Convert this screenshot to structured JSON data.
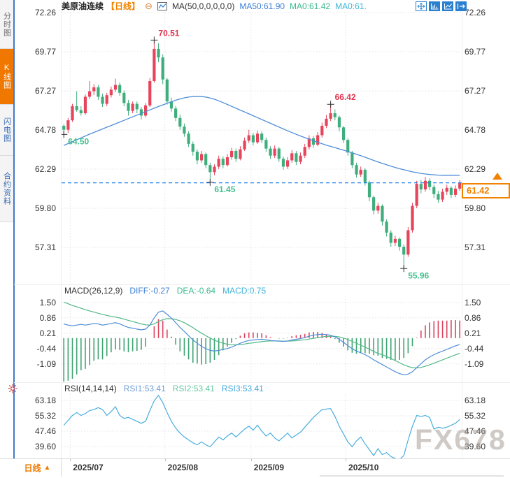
{
  "sidebar": {
    "tabs": [
      {
        "label": "分时图",
        "active": false
      },
      {
        "label": "K线图",
        "active": true
      },
      {
        "label": "闪电图",
        "active": false
      },
      {
        "label": "合约资料",
        "active": false
      }
    ]
  },
  "header": {
    "symbol": "美原油连续",
    "period": "【日线】",
    "collapse_glyph": "⊖",
    "ma_settings": "MA(50,0,0,0,0,0)",
    "ma50_label": "MA50:61.90",
    "ma0_label_a": "MA0:61.42",
    "ma0_label_b": "MA0:61."
  },
  "toolbar": {
    "icons": [
      "crosshair-move-icon",
      "zoom-range-icon",
      "axis-scale-icon",
      "pane-expand-icon"
    ]
  },
  "price_tag": {
    "value": "61.42"
  },
  "macd_header": {
    "params": "MACD(26,12,9)",
    "diff": "DIFF:-0.27",
    "dea": "DEA:-0.64",
    "macd": "MACD:0.75"
  },
  "rsi_header": {
    "params": "RSI(14,14,14)",
    "rsi1": "RSI1:53.41",
    "rsi2": "RSI2:53.41",
    "rsi3": "RSI3:53.41"
  },
  "bottom": {
    "period_label": "日线",
    "period_arrow": "▲",
    "dates": [
      "2025/07",
      "2025/08",
      "2025/09",
      "2025/10"
    ]
  },
  "watermark": "FX678",
  "colors": {
    "up": "#e6455c",
    "down": "#3eae7c",
    "annotation_high": "#e0334e",
    "annotation_low": "#45c08f",
    "ma50": "#4f8ed8",
    "current_line": "#1e80e8",
    "accent_orange": "#f08200",
    "diff_line": "#4f8ed8",
    "dea_line": "#52b888",
    "hist_pos": "#d9455f",
    "hist_neg": "#3fa372",
    "rsi_line": "#49aede",
    "grid": "#e2e4ea"
  },
  "chart_data": [
    {
      "type": "candlestick",
      "title": "美原油连续 日线",
      "yticks": [
        "72.26",
        "69.77",
        "67.27",
        "64.78",
        "62.29",
        "59.80",
        "57.31"
      ],
      "ylim": [
        55.5,
        72.26
      ],
      "month_start_days": [
        2,
        24,
        44,
        66
      ],
      "current_price": 61.42,
      "annotations": [
        {
          "day": 0,
          "price": 64.5,
          "text": "64.50",
          "kind": "low"
        },
        {
          "day": 21,
          "price": 70.51,
          "text": "70.51",
          "kind": "high"
        },
        {
          "day": 34,
          "price": 61.45,
          "text": "61.45",
          "kind": "low"
        },
        {
          "day": 62,
          "price": 66.42,
          "text": "66.42",
          "kind": "high"
        },
        {
          "day": 79,
          "price": 55.96,
          "text": "55.96",
          "kind": "low"
        }
      ],
      "candles": [
        [
          65.05,
          65.15,
          64.5,
          64.8
        ],
        [
          64.8,
          65.55,
          64.6,
          65.4
        ],
        [
          65.4,
          66.45,
          65.3,
          66.3
        ],
        [
          66.3,
          67.25,
          65.95,
          66.05
        ],
        [
          66.05,
          66.3,
          65.7,
          65.85
        ],
        [
          65.85,
          67.05,
          65.75,
          66.9
        ],
        [
          66.9,
          67.9,
          66.75,
          67.25
        ],
        [
          67.25,
          67.7,
          67.0,
          67.5
        ],
        [
          67.5,
          67.65,
          66.7,
          66.9
        ],
        [
          66.9,
          67.1,
          66.25,
          66.45
        ],
        [
          66.45,
          67.15,
          66.3,
          67.0
        ],
        [
          67.0,
          67.55,
          66.85,
          67.35
        ],
        [
          67.35,
          68.05,
          67.2,
          67.65
        ],
        [
          67.65,
          67.8,
          66.95,
          67.15
        ],
        [
          67.15,
          67.3,
          66.3,
          66.5
        ],
        [
          66.5,
          66.7,
          65.7,
          66.0
        ],
        [
          66.0,
          66.6,
          65.85,
          66.45
        ],
        [
          66.45,
          66.6,
          65.85,
          66.1
        ],
        [
          66.1,
          66.25,
          65.45,
          65.7
        ],
        [
          65.7,
          66.5,
          65.6,
          66.35
        ],
        [
          66.35,
          68.1,
          66.25,
          67.9
        ],
        [
          67.9,
          70.51,
          67.8,
          69.95
        ],
        [
          69.95,
          70.3,
          69.1,
          69.4
        ],
        [
          69.4,
          69.6,
          67.7,
          68.0
        ],
        [
          68.0,
          68.1,
          66.4,
          66.6
        ],
        [
          66.6,
          66.85,
          65.95,
          66.15
        ],
        [
          66.15,
          66.3,
          65.35,
          65.55
        ],
        [
          65.55,
          65.75,
          64.8,
          65.0
        ],
        [
          65.0,
          65.2,
          64.35,
          64.55
        ],
        [
          64.55,
          64.7,
          63.7,
          63.9
        ],
        [
          63.9,
          64.05,
          63.15,
          63.4
        ],
        [
          63.4,
          63.55,
          62.6,
          62.85
        ],
        [
          62.85,
          63.45,
          62.7,
          63.25
        ],
        [
          63.25,
          63.35,
          62.35,
          62.55
        ],
        [
          62.55,
          62.7,
          61.45,
          62.1
        ],
        [
          62.1,
          62.6,
          61.9,
          62.45
        ],
        [
          62.45,
          63.15,
          62.3,
          62.95
        ],
        [
          62.95,
          63.1,
          62.35,
          62.55
        ],
        [
          62.55,
          63.25,
          62.45,
          63.05
        ],
        [
          63.05,
          63.65,
          62.9,
          63.45
        ],
        [
          63.45,
          63.6,
          62.75,
          62.95
        ],
        [
          62.95,
          63.75,
          62.85,
          63.55
        ],
        [
          63.55,
          64.3,
          63.45,
          64.1
        ],
        [
          64.1,
          64.8,
          63.95,
          64.45
        ],
        [
          64.45,
          64.6,
          63.8,
          64.0
        ],
        [
          64.0,
          64.75,
          63.9,
          64.55
        ],
        [
          64.55,
          64.7,
          63.95,
          64.15
        ],
        [
          64.15,
          64.3,
          63.4,
          63.6
        ],
        [
          63.6,
          63.75,
          62.95,
          63.15
        ],
        [
          63.15,
          63.8,
          63.0,
          63.6
        ],
        [
          63.6,
          63.7,
          62.75,
          62.95
        ],
        [
          62.95,
          63.1,
          62.25,
          62.45
        ],
        [
          62.45,
          63.05,
          62.3,
          62.85
        ],
        [
          62.85,
          63.5,
          62.7,
          63.3
        ],
        [
          63.3,
          63.45,
          62.55,
          62.75
        ],
        [
          62.75,
          63.35,
          62.6,
          63.15
        ],
        [
          63.15,
          63.9,
          63.0,
          63.7
        ],
        [
          63.7,
          64.45,
          63.55,
          64.25
        ],
        [
          64.25,
          64.4,
          63.65,
          63.85
        ],
        [
          63.85,
          64.65,
          63.75,
          64.45
        ],
        [
          64.45,
          65.25,
          64.3,
          65.05
        ],
        [
          65.05,
          65.75,
          64.9,
          65.5
        ],
        [
          65.5,
          66.42,
          65.35,
          65.85
        ],
        [
          65.85,
          66.1,
          65.4,
          65.6
        ],
        [
          65.6,
          65.7,
          64.7,
          64.95
        ],
        [
          64.95,
          65.05,
          63.95,
          64.15
        ],
        [
          64.15,
          64.25,
          63.15,
          63.35
        ],
        [
          63.35,
          63.45,
          62.35,
          62.55
        ],
        [
          62.55,
          62.7,
          61.75,
          61.95
        ],
        [
          61.95,
          62.45,
          61.8,
          62.25
        ],
        [
          62.25,
          62.35,
          61.25,
          61.45
        ],
        [
          61.45,
          61.55,
          60.25,
          60.5
        ],
        [
          60.5,
          60.6,
          59.4,
          59.65
        ],
        [
          59.65,
          60.15,
          59.45,
          59.95
        ],
        [
          59.95,
          60.05,
          58.7,
          58.95
        ],
        [
          58.95,
          59.1,
          58.0,
          58.25
        ],
        [
          58.25,
          58.4,
          57.35,
          57.6
        ],
        [
          57.6,
          58.05,
          57.4,
          57.85
        ],
        [
          57.85,
          57.95,
          57.1,
          57.35
        ],
        [
          57.35,
          57.5,
          55.96,
          56.85
        ],
        [
          56.85,
          58.6,
          56.7,
          58.4
        ],
        [
          58.4,
          60.15,
          58.25,
          59.95
        ],
        [
          59.95,
          61.55,
          59.8,
          61.35
        ],
        [
          61.35,
          61.6,
          60.75,
          61.0
        ],
        [
          61.0,
          61.8,
          60.85,
          61.55
        ],
        [
          61.55,
          61.7,
          60.95,
          61.15
        ],
        [
          61.15,
          61.3,
          60.45,
          60.7
        ],
        [
          60.7,
          60.9,
          60.15,
          60.35
        ],
        [
          60.35,
          61.05,
          60.2,
          60.85
        ],
        [
          60.85,
          61.3,
          60.65,
          61.1
        ],
        [
          61.1,
          61.2,
          60.45,
          60.65
        ],
        [
          60.65,
          61.25,
          60.5,
          61.05
        ],
        [
          61.05,
          61.6,
          60.9,
          61.42
        ]
      ],
      "ma50": [
        63.8,
        63.92,
        64.04,
        64.16,
        64.28,
        64.4,
        64.52,
        64.63,
        64.74,
        64.85,
        64.96,
        65.07,
        65.18,
        65.29,
        65.4,
        65.51,
        65.62,
        65.73,
        65.84,
        65.95,
        66.06,
        66.17,
        66.28,
        66.38,
        66.48,
        66.58,
        66.68,
        66.76,
        66.83,
        66.88,
        66.91,
        66.92,
        66.91,
        66.88,
        66.82,
        66.74,
        66.64,
        66.53,
        66.41,
        66.29,
        66.17,
        66.05,
        65.93,
        65.81,
        65.69,
        65.57,
        65.45,
        65.33,
        65.21,
        65.09,
        64.97,
        64.85,
        64.73,
        64.62,
        64.51,
        64.4,
        64.3,
        64.2,
        64.1,
        64.0,
        63.91,
        63.82,
        63.74,
        63.66,
        63.58,
        63.5,
        63.42,
        63.33,
        63.24,
        63.15,
        63.05,
        62.95,
        62.85,
        62.75,
        62.66,
        62.57,
        62.48,
        62.4,
        62.32,
        62.25,
        62.18,
        62.12,
        62.07,
        62.02,
        61.98,
        61.95,
        61.93,
        61.91,
        61.9,
        61.9,
        61.9,
        61.9,
        61.9
      ]
    },
    {
      "type": "line",
      "title": "MACD(26,12,9)",
      "yticks": [
        "1.50",
        "0.86",
        "0.21",
        "-0.44",
        "-1.09"
      ],
      "diff": [
        0.6,
        0.55,
        0.52,
        0.55,
        0.58,
        0.55,
        0.58,
        0.62,
        0.6,
        0.55,
        0.58,
        0.62,
        0.65,
        0.6,
        0.52,
        0.45,
        0.42,
        0.38,
        0.35,
        0.38,
        0.55,
        0.85,
        1.1,
        1.15,
        1.0,
        0.85,
        0.65,
        0.45,
        0.28,
        0.1,
        -0.08,
        -0.22,
        -0.35,
        -0.45,
        -0.52,
        -0.55,
        -0.52,
        -0.48,
        -0.44,
        -0.38,
        -0.3,
        -0.22,
        -0.15,
        -0.1,
        -0.08,
        -0.06,
        -0.05,
        -0.07,
        -0.1,
        -0.12,
        -0.13,
        -0.14,
        -0.12,
        -0.08,
        -0.05,
        -0.02,
        0.02,
        0.08,
        0.12,
        0.15,
        0.16,
        0.15,
        0.12,
        0.05,
        -0.05,
        -0.18,
        -0.32,
        -0.45,
        -0.55,
        -0.62,
        -0.7,
        -0.8,
        -0.92,
        -1.02,
        -1.12,
        -1.22,
        -1.32,
        -1.42,
        -1.5,
        -1.55,
        -1.52,
        -1.42,
        -1.25,
        -1.08,
        -0.92,
        -0.8,
        -0.7,
        -0.62,
        -0.55,
        -0.48,
        -0.4,
        -0.33,
        -0.27
      ],
      "dea": [
        1.52,
        1.45,
        1.38,
        1.32,
        1.26,
        1.2,
        1.15,
        1.1,
        1.05,
        1.0,
        0.96,
        0.92,
        0.89,
        0.85,
        0.8,
        0.75,
        0.7,
        0.65,
        0.6,
        0.56,
        0.55,
        0.6,
        0.7,
        0.78,
        0.82,
        0.82,
        0.79,
        0.73,
        0.65,
        0.55,
        0.44,
        0.32,
        0.21,
        0.1,
        0.0,
        -0.09,
        -0.16,
        -0.22,
        -0.26,
        -0.28,
        -0.28,
        -0.27,
        -0.25,
        -0.22,
        -0.2,
        -0.17,
        -0.15,
        -0.13,
        -0.12,
        -0.12,
        -0.12,
        -0.13,
        -0.13,
        -0.12,
        -0.11,
        -0.09,
        -0.07,
        -0.04,
        -0.01,
        0.02,
        0.05,
        0.07,
        0.08,
        0.07,
        0.05,
        0.0,
        -0.06,
        -0.14,
        -0.22,
        -0.3,
        -0.38,
        -0.47,
        -0.56,
        -0.65,
        -0.7,
        -0.78,
        -0.86,
        -0.95,
        -1.04,
        -1.13,
        -1.2,
        -1.25,
        -1.26,
        -1.24,
        -1.19,
        -1.13,
        -1.06,
        -0.99,
        -0.92,
        -0.85,
        -0.78,
        -0.71,
        -0.64
      ],
      "histogram_rule": "2*(diff-dea)"
    },
    {
      "type": "line",
      "title": "RSI(14,14,14)",
      "yticks": [
        "63.18",
        "55.32",
        "47.46",
        "39.60"
      ],
      "rsi": [
        50.5,
        53,
        55.5,
        57,
        55.5,
        56.5,
        58,
        58.5,
        59.5,
        58.5,
        55.5,
        57.5,
        60,
        55.5,
        54,
        54.5,
        53.5,
        52.5,
        51.5,
        52.5,
        58,
        63,
        65.8,
        62,
        57,
        52.5,
        49,
        46.5,
        44.5,
        43,
        41.5,
        40.5,
        42,
        40.5,
        39.5,
        42,
        44.5,
        43,
        45,
        46.5,
        44.5,
        46.5,
        48.5,
        50,
        48,
        50.5,
        47.5,
        45,
        46.5,
        44,
        42.5,
        44.5,
        46.5,
        44,
        45.5,
        47,
        49.5,
        52,
        54.5,
        56.5,
        58.5,
        58.8,
        59,
        55,
        50,
        46,
        42,
        39.5,
        42.5,
        44.5,
        41,
        38,
        35,
        38.5,
        35.5,
        36.5,
        34.5,
        33.5,
        33,
        35,
        43,
        50,
        55.5,
        55,
        55.5,
        54.5,
        48.5,
        49.5,
        49,
        49.5,
        50.5,
        51.5,
        53.41
      ]
    }
  ]
}
